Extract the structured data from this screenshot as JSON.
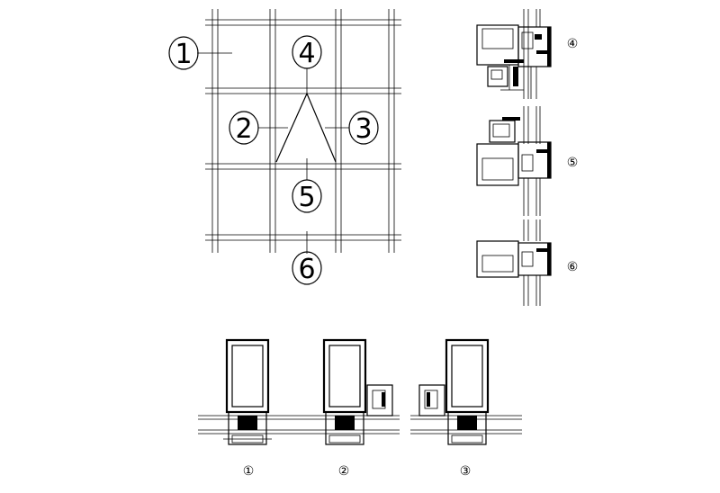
{
  "elevation": {
    "callouts": [
      {
        "id": "c1",
        "label": "1"
      },
      {
        "id": "c2",
        "label": "2"
      },
      {
        "id": "c3",
        "label": "3"
      },
      {
        "id": "c4",
        "label": "4"
      },
      {
        "id": "c5",
        "label": "5"
      },
      {
        "id": "c6",
        "label": "6"
      }
    ]
  },
  "vertical_sections": [
    {
      "id": "v4",
      "label": "④"
    },
    {
      "id": "v5",
      "label": "⑤"
    },
    {
      "id": "v6",
      "label": "⑥"
    }
  ],
  "horizontal_sections": [
    {
      "id": "h1",
      "label": "①"
    },
    {
      "id": "h2",
      "label": "②"
    },
    {
      "id": "h3",
      "label": "③"
    }
  ]
}
